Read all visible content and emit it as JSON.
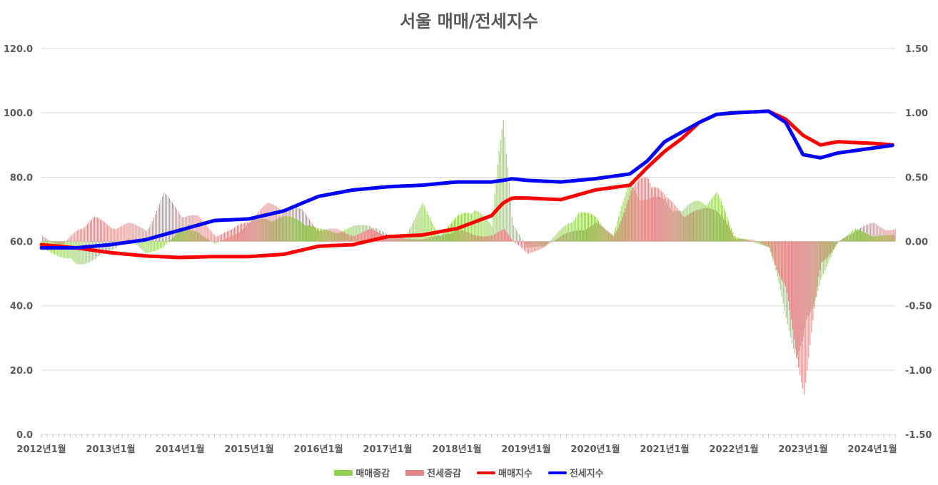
{
  "chart_data": {
    "type": "bar+line",
    "title": "서울 매매/전세지수",
    "left_axis": {
      "ticks": [
        "0.0",
        "20.0",
        "40.0",
        "60.0",
        "80.0",
        "100.0",
        "120.0"
      ],
      "ylim": [
        0,
        120
      ]
    },
    "right_axis": {
      "ticks": [
        "-1.50",
        "-1.00",
        "-0.50",
        "0.00",
        "0.50",
        "1.00",
        "1.50"
      ],
      "ylim": [
        -1.5,
        1.5
      ]
    },
    "x_ticks": [
      "2012년1월",
      "2013년1월",
      "2014년1월",
      "2015년1월",
      "2016년1월",
      "2017년1월",
      "2018년1월",
      "2019년1월",
      "2020년1월",
      "2021년1월",
      "2022년1월",
      "2023년1월",
      "2024년1월"
    ],
    "x_range": [
      2012.0,
      2024.33
    ],
    "grid": true,
    "legend_position": "bottom",
    "series": [
      {
        "name": "매매증감",
        "kind": "bar",
        "axis": "right",
        "color": "#92D050",
        "points": [
          [
            2012.0,
            -0.05
          ],
          [
            2012.25,
            -0.12
          ],
          [
            2012.5,
            -0.2
          ],
          [
            2012.75,
            -0.15
          ],
          [
            2013.0,
            -0.08
          ],
          [
            2013.25,
            0.02
          ],
          [
            2013.5,
            -0.1
          ],
          [
            2013.75,
            -0.05
          ],
          [
            2014.0,
            0.1
          ],
          [
            2014.25,
            0.08
          ],
          [
            2014.5,
            -0.02
          ],
          [
            2014.75,
            0.05
          ],
          [
            2015.0,
            0.15
          ],
          [
            2015.25,
            0.2
          ],
          [
            2015.5,
            0.2
          ],
          [
            2015.75,
            0.18
          ],
          [
            2016.0,
            0.1
          ],
          [
            2016.25,
            0.08
          ],
          [
            2016.5,
            0.12
          ],
          [
            2016.75,
            0.15
          ],
          [
            2017.0,
            0.05
          ],
          [
            2017.25,
            0.05
          ],
          [
            2017.5,
            0.3
          ],
          [
            2017.75,
            0.05
          ],
          [
            2018.0,
            0.2
          ],
          [
            2018.25,
            0.3
          ],
          [
            2018.5,
            0.12
          ],
          [
            2018.67,
            1.2
          ],
          [
            2018.8,
            0.15
          ],
          [
            2019.0,
            -0.05
          ],
          [
            2019.25,
            -0.05
          ],
          [
            2019.5,
            0.1
          ],
          [
            2019.75,
            0.25
          ],
          [
            2020.0,
            0.2
          ],
          [
            2020.25,
            0.05
          ],
          [
            2020.5,
            0.5
          ],
          [
            2020.75,
            0.35
          ],
          [
            2021.0,
            0.35
          ],
          [
            2021.25,
            0.25
          ],
          [
            2021.5,
            0.35
          ],
          [
            2021.75,
            0.4
          ],
          [
            2022.0,
            0.05
          ],
          [
            2022.25,
            0.0
          ],
          [
            2022.5,
            -0.05
          ],
          [
            2022.75,
            -0.6
          ],
          [
            2022.9,
            -0.95
          ],
          [
            2023.0,
            -0.9
          ],
          [
            2023.25,
            -0.3
          ],
          [
            2023.5,
            0.0
          ],
          [
            2023.75,
            0.1
          ],
          [
            2024.0,
            0.05
          ],
          [
            2024.25,
            0.05
          ]
        ]
      },
      {
        "name": "전세증감",
        "kind": "bar",
        "axis": "right",
        "color": "#E28888",
        "points": [
          [
            2012.0,
            0.05
          ],
          [
            2012.25,
            -0.05
          ],
          [
            2012.5,
            0.1
          ],
          [
            2012.75,
            0.2
          ],
          [
            2013.0,
            0.12
          ],
          [
            2013.25,
            0.15
          ],
          [
            2013.5,
            0.1
          ],
          [
            2013.75,
            0.38
          ],
          [
            2014.0,
            0.25
          ],
          [
            2014.25,
            0.2
          ],
          [
            2014.5,
            0.05
          ],
          [
            2014.75,
            0.1
          ],
          [
            2015.0,
            0.2
          ],
          [
            2015.25,
            0.3
          ],
          [
            2015.5,
            0.3
          ],
          [
            2015.75,
            0.25
          ],
          [
            2016.0,
            0.1
          ],
          [
            2016.25,
            0.1
          ],
          [
            2016.5,
            0.05
          ],
          [
            2016.75,
            0.1
          ],
          [
            2017.0,
            0.05
          ],
          [
            2017.25,
            0.02
          ],
          [
            2017.5,
            0.02
          ],
          [
            2017.75,
            0.05
          ],
          [
            2018.0,
            0.1
          ],
          [
            2018.25,
            0.05
          ],
          [
            2018.5,
            0.05
          ],
          [
            2018.67,
            0.1
          ],
          [
            2018.8,
            0.0
          ],
          [
            2019.0,
            -0.1
          ],
          [
            2019.25,
            -0.05
          ],
          [
            2019.5,
            0.05
          ],
          [
            2019.75,
            0.1
          ],
          [
            2020.0,
            0.15
          ],
          [
            2020.25,
            0.05
          ],
          [
            2020.5,
            0.4
          ],
          [
            2020.75,
            0.6
          ],
          [
            2021.0,
            0.35
          ],
          [
            2021.25,
            0.25
          ],
          [
            2021.5,
            0.25
          ],
          [
            2021.75,
            0.3
          ],
          [
            2022.0,
            0.02
          ],
          [
            2022.25,
            0.02
          ],
          [
            2022.5,
            -0.05
          ],
          [
            2022.75,
            -0.5
          ],
          [
            2022.9,
            -0.95
          ],
          [
            2023.0,
            -1.2
          ],
          [
            2023.25,
            -0.2
          ],
          [
            2023.5,
            0.0
          ],
          [
            2023.75,
            0.1
          ],
          [
            2024.0,
            0.15
          ],
          [
            2024.25,
            0.1
          ]
        ]
      },
      {
        "name": "매매지수",
        "kind": "line",
        "axis": "left",
        "color": "#FF0000",
        "points": [
          [
            2012.0,
            59
          ],
          [
            2012.5,
            58
          ],
          [
            2013.0,
            56.5
          ],
          [
            2013.5,
            55.5
          ],
          [
            2014.0,
            55
          ],
          [
            2014.5,
            55.3
          ],
          [
            2015.0,
            55.3
          ],
          [
            2015.5,
            56
          ],
          [
            2016.0,
            58.5
          ],
          [
            2016.5,
            59
          ],
          [
            2017.0,
            61.5
          ],
          [
            2017.5,
            62
          ],
          [
            2018.0,
            64
          ],
          [
            2018.5,
            68
          ],
          [
            2018.67,
            72
          ],
          [
            2018.8,
            73.5
          ],
          [
            2019.0,
            73.5
          ],
          [
            2019.5,
            73
          ],
          [
            2020.0,
            76
          ],
          [
            2020.5,
            77.5
          ],
          [
            2020.75,
            83
          ],
          [
            2021.0,
            88
          ],
          [
            2021.25,
            92
          ],
          [
            2021.5,
            97
          ],
          [
            2021.75,
            99.5
          ],
          [
            2022.0,
            100
          ],
          [
            2022.5,
            100.5
          ],
          [
            2022.75,
            98
          ],
          [
            2023.0,
            93
          ],
          [
            2023.25,
            90
          ],
          [
            2023.5,
            91
          ],
          [
            2024.0,
            90.5
          ],
          [
            2024.33,
            90
          ]
        ]
      },
      {
        "name": "전세지수",
        "kind": "line",
        "axis": "left",
        "color": "#0000FF",
        "points": [
          [
            2012.0,
            58
          ],
          [
            2012.5,
            58
          ],
          [
            2013.0,
            59
          ],
          [
            2013.5,
            60.5
          ],
          [
            2014.0,
            63.5
          ],
          [
            2014.5,
            66.5
          ],
          [
            2015.0,
            67
          ],
          [
            2015.5,
            69.5
          ],
          [
            2016.0,
            74
          ],
          [
            2016.5,
            76
          ],
          [
            2017.0,
            77
          ],
          [
            2017.5,
            77.5
          ],
          [
            2018.0,
            78.5
          ],
          [
            2018.5,
            78.5
          ],
          [
            2018.67,
            79
          ],
          [
            2018.8,
            79.5
          ],
          [
            2019.0,
            79
          ],
          [
            2019.5,
            78.5
          ],
          [
            2020.0,
            79.5
          ],
          [
            2020.5,
            81
          ],
          [
            2020.75,
            85
          ],
          [
            2021.0,
            91
          ],
          [
            2021.25,
            94
          ],
          [
            2021.5,
            97
          ],
          [
            2021.75,
            99.5
          ],
          [
            2022.0,
            100
          ],
          [
            2022.5,
            100.5
          ],
          [
            2022.75,
            97
          ],
          [
            2023.0,
            87
          ],
          [
            2023.25,
            86
          ],
          [
            2023.5,
            87.5
          ],
          [
            2024.0,
            89
          ],
          [
            2024.33,
            90
          ]
        ]
      }
    ]
  }
}
